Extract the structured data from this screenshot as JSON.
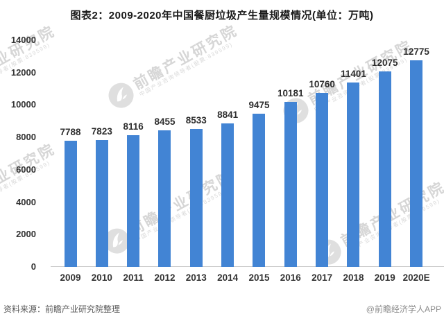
{
  "title": "图表2：2009-2020年中国餐厨垃圾产生量规模情况(单位：万吨)",
  "footer": {
    "source": "资料来源：前瞻产业研究院整理",
    "credit": "@前瞻经济学人APP"
  },
  "watermark": {
    "text": "前瞻产业研究院",
    "subtext": "中国产业咨询领导者(股票:839599)",
    "logo_icon": "qianzhan-bird-logo",
    "color": "#c8c8c8"
  },
  "chart_data": {
    "type": "bar",
    "title": "图表2：2009-2020年中国餐厨垃圾产生量规模情况(单位：万吨)",
    "categories": [
      "2009",
      "2010",
      "2011",
      "2012",
      "2013",
      "2014",
      "2015",
      "2016",
      "2017",
      "2018",
      "2019",
      "2020E"
    ],
    "values": [
      7788,
      7823,
      8116,
      8455,
      8533,
      8841,
      9475,
      10181,
      10760,
      11401,
      12075,
      12775
    ],
    "unit": "万吨",
    "xlabel": "",
    "ylabel": "",
    "ylim": [
      0,
      14000
    ],
    "yticks": [
      0,
      2000,
      4000,
      6000,
      8000,
      10000,
      12000,
      14000
    ],
    "bar_color": "#4284d4",
    "grid": false,
    "legend": "none",
    "data_labels": true
  }
}
